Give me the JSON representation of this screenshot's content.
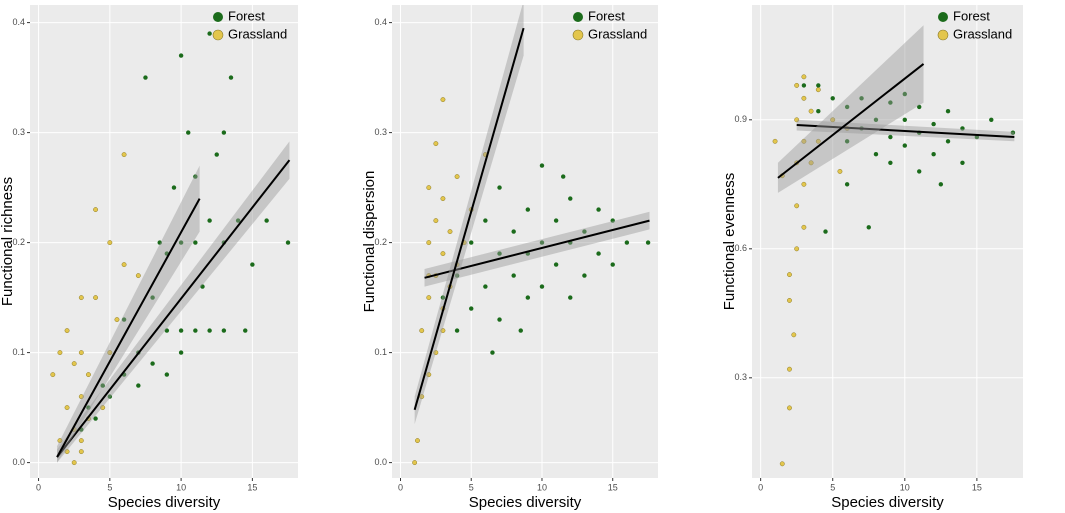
{
  "chart_data": [
    {
      "type": "scatter",
      "x_label": "Species diversity",
      "y_label": "Functional richness",
      "xlim": [
        -0.6,
        18.2
      ],
      "ylim": [
        -0.014,
        0.416
      ],
      "xticks": [
        0,
        5,
        10,
        15
      ],
      "yticks": [
        {
          "value": 0,
          "label": "0.0"
        },
        0.1,
        0.2,
        0.3,
        0.4
      ],
      "grid": true,
      "legend": "top-right",
      "series": [
        {
          "name": "Forest",
          "color": "#1b6b1b",
          "x": [
            3,
            3.5,
            4,
            4.5,
            5,
            5,
            6,
            6,
            7,
            7,
            7.5,
            8,
            8,
            8.5,
            9,
            9,
            9,
            9.5,
            10,
            10,
            10,
            10,
            10.5,
            11,
            11,
            11.5,
            12,
            12,
            12,
            12.5,
            13,
            13,
            13.5,
            14,
            14.5,
            15,
            16,
            17.5,
            13,
            11
          ],
          "values": [
            0.03,
            0.05,
            0.04,
            0.07,
            0.06,
            0.1,
            0.08,
            0.13,
            0.07,
            0.1,
            0.35,
            0.09,
            0.15,
            0.2,
            0.08,
            0.12,
            0.19,
            0.25,
            0.1,
            0.12,
            0.2,
            0.37,
            0.3,
            0.12,
            0.2,
            0.16,
            0.12,
            0.22,
            0.39,
            0.28,
            0.12,
            0.2,
            0.35,
            0.22,
            0.12,
            0.18,
            0.22,
            0.2,
            0.3,
            0.26
          ],
          "fit": {
            "x": [
              1.3,
              17.6
            ],
            "values": [
              0.005,
              0.275
            ],
            "lower": [
              0.0,
              0.258
            ],
            "upper": [
              0.012,
              0.292
            ]
          }
        },
        {
          "name": "Grassland",
          "color": "#e3c64d",
          "x": [
            1,
            1.5,
            2,
            2,
            2.5,
            2.5,
            3,
            3,
            3,
            3,
            2,
            3.5,
            4,
            4,
            4.5,
            5,
            5,
            6,
            5.5,
            6,
            7,
            3,
            2.5,
            1.5,
            3.5
          ],
          "values": [
            0.08,
            0.02,
            0.01,
            0.05,
            0.0,
            0.03,
            0.01,
            0.02,
            0.06,
            0.1,
            0.12,
            0.08,
            0.15,
            0.23,
            0.05,
            0.1,
            0.2,
            0.28,
            0.13,
            0.18,
            0.17,
            0.15,
            0.09,
            0.1,
            0.04
          ],
          "fit": {
            "x": [
              1.3,
              11.3
            ],
            "values": [
              0.005,
              0.24
            ],
            "lower": [
              0.0,
              0.21
            ],
            "upper": [
              0.015,
              0.27
            ]
          }
        }
      ]
    },
    {
      "type": "scatter",
      "x_label": "Species diversity",
      "y_label": "Functional dispersion",
      "xlim": [
        -0.6,
        18.2
      ],
      "ylim": [
        -0.014,
        0.416
      ],
      "xticks": [
        0,
        5,
        10,
        15
      ],
      "yticks": [
        {
          "value": 0,
          "label": "0.0"
        },
        0.1,
        0.2,
        0.3,
        0.4
      ],
      "grid": true,
      "legend": "top-right",
      "series": [
        {
          "name": "Forest",
          "color": "#1b6b1b",
          "x": [
            3,
            4,
            4,
            5,
            5,
            6,
            6,
            7,
            7,
            7,
            8,
            8,
            9,
            9,
            9,
            10,
            10,
            10,
            11,
            11,
            12,
            12,
            12,
            13,
            13,
            14,
            14,
            15,
            15,
            16,
            17.5,
            11.5,
            8.5,
            6.5
          ],
          "values": [
            0.15,
            0.12,
            0.17,
            0.14,
            0.2,
            0.16,
            0.22,
            0.13,
            0.19,
            0.25,
            0.17,
            0.21,
            0.15,
            0.19,
            0.23,
            0.16,
            0.2,
            0.27,
            0.18,
            0.22,
            0.15,
            0.2,
            0.24,
            0.17,
            0.21,
            0.19,
            0.23,
            0.18,
            0.22,
            0.2,
            0.2,
            0.26,
            0.12,
            0.1
          ],
          "fit": {
            "x": [
              1.7,
              17.6
            ],
            "values": [
              0.168,
              0.22
            ],
            "lower": [
              0.16,
              0.212
            ],
            "upper": [
              0.176,
              0.228
            ]
          }
        },
        {
          "name": "Grassland",
          "color": "#e3c64d",
          "x": [
            1,
            1.2,
            1.5,
            1.5,
            2,
            2,
            2,
            2,
            2.5,
            2.5,
            2.5,
            2.5,
            3,
            3,
            3,
            3,
            3.5,
            3.5,
            4,
            4,
            4.5,
            5,
            6,
            2,
            3
          ],
          "values": [
            0.0,
            0.02,
            0.06,
            0.12,
            0.08,
            0.15,
            0.2,
            0.25,
            0.1,
            0.17,
            0.22,
            0.29,
            0.14,
            0.19,
            0.24,
            0.33,
            0.16,
            0.21,
            0.18,
            0.26,
            0.2,
            0.23,
            0.28,
            0.17,
            0.12
          ],
          "fit": {
            "x": [
              1,
              8.7
            ],
            "values": [
              0.048,
              0.395
            ],
            "lower": [
              0.035,
              0.37
            ],
            "upper": [
              0.06,
              0.42
            ]
          }
        }
      ]
    },
    {
      "type": "scatter",
      "x_label": "Species diversity",
      "y_label": "Functional evenness",
      "xlim": [
        -0.6,
        18.2
      ],
      "ylim": [
        0.067,
        1.167
      ],
      "xticks": [
        0,
        5,
        10,
        15
      ],
      "yticks": [
        0.3,
        0.6,
        0.9
      ],
      "grid": true,
      "legend": "top-right",
      "series": [
        {
          "name": "Forest",
          "color": "#1b6b1b",
          "x": [
            3,
            4,
            4,
            5,
            5,
            6,
            6,
            7,
            7,
            7.5,
            8,
            8,
            9,
            9,
            9,
            10,
            10,
            10,
            11,
            11,
            11,
            12,
            12,
            13,
            13,
            14,
            14,
            15,
            16,
            17.5,
            12.5,
            6,
            4.5
          ],
          "values": [
            0.98,
            0.92,
            0.98,
            0.9,
            0.95,
            0.85,
            0.93,
            0.88,
            0.95,
            0.65,
            0.82,
            0.9,
            0.86,
            0.94,
            0.8,
            0.84,
            0.9,
            0.96,
            0.78,
            0.87,
            0.93,
            0.82,
            0.89,
            0.85,
            0.92,
            0.8,
            0.88,
            0.86,
            0.9,
            0.87,
            0.75,
            0.75,
            0.64
          ],
          "fit": {
            "x": [
              2.5,
              17.6
            ],
            "values": [
              0.888,
              0.86
            ],
            "lower": [
              0.875,
              0.85
            ],
            "upper": [
              0.9,
              0.872
            ]
          }
        },
        {
          "name": "Grassland",
          "color": "#e3c64d",
          "x": [
            1.5,
            2,
            2,
            2,
            2,
            2.3,
            2.5,
            2.5,
            2.5,
            2.5,
            2.5,
            3,
            3,
            3,
            3,
            3,
            3.5,
            3.5,
            4,
            4,
            5,
            1.5,
            1,
            5.5,
            6
          ],
          "values": [
            0.1,
            0.23,
            0.32,
            0.48,
            0.54,
            0.4,
            0.6,
            0.7,
            0.8,
            0.9,
            0.98,
            0.65,
            0.75,
            0.85,
            0.95,
            1.0,
            0.8,
            0.92,
            0.85,
            0.97,
            0.9,
            0.77,
            0.85,
            0.78,
            0.88
          ],
          "fit": {
            "x": [
              1.2,
              11.3
            ],
            "values": [
              0.765,
              1.03
            ],
            "lower": [
              0.73,
              0.94
            ],
            "upper": [
              0.8,
              1.12
            ]
          }
        }
      ]
    }
  ]
}
